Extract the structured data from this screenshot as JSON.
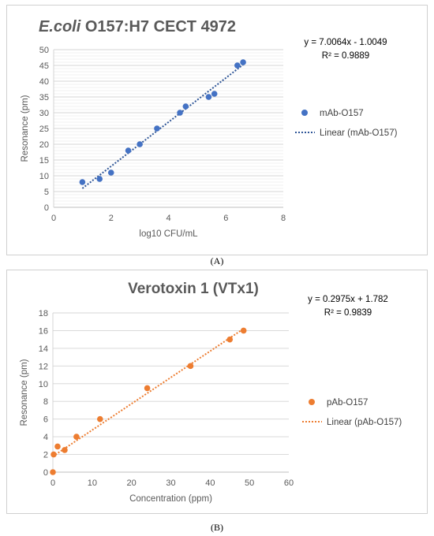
{
  "chart_data": [
    {
      "type": "scatter",
      "title_italic": "E.coli",
      "title_rest": " O157:H7 CECT 4972",
      "xlabel": "log10 CFU/mL",
      "ylabel": "Resonance (pm)",
      "xlim": [
        0,
        8
      ],
      "ylim": [
        0,
        50
      ],
      "xticks": [
        0,
        2,
        4,
        6,
        8
      ],
      "yticks": [
        0,
        5,
        10,
        15,
        20,
        25,
        30,
        35,
        40,
        45,
        50
      ],
      "minor_grid_step": 1,
      "grid": true,
      "legend_position": "right",
      "series": [
        {
          "name": "mAb-O157",
          "color": "#4472c4",
          "x": [
            1.0,
            1.6,
            2.0,
            2.6,
            3.0,
            3.6,
            4.4,
            4.6,
            5.4,
            5.6,
            6.4,
            6.6
          ],
          "y": [
            8,
            9,
            11,
            18,
            20,
            25,
            30,
            32,
            35,
            36,
            45,
            46
          ]
        }
      ],
      "trendline": {
        "name": "Linear (mAb-O157)",
        "color": "#2e5597",
        "slope": 7.0064,
        "intercept": -1.0049,
        "x_range": [
          1.0,
          6.6
        ]
      },
      "equation": "y = 7.0064x - 1.0049",
      "r_squared": "R² = 0.9889"
    },
    {
      "type": "scatter",
      "title_italic": "",
      "title_rest": "Verotoxin 1 (VTx1)",
      "xlabel": "Concentration (ppm)",
      "ylabel": "Resonance (pm)",
      "xlim": [
        0,
        60
      ],
      "ylim": [
        0,
        18
      ],
      "xticks": [
        0,
        10,
        20,
        30,
        40,
        50,
        60
      ],
      "yticks": [
        0,
        2,
        4,
        6,
        8,
        10,
        12,
        14,
        16,
        18
      ],
      "minor_grid_step": 0,
      "grid": true,
      "legend_position": "right",
      "series": [
        {
          "name": "pAb-O157",
          "color": "#ed7d31",
          "x": [
            0,
            0.2,
            1.2,
            3.0,
            6.0,
            12.0,
            24.0,
            35.0,
            45.0,
            48.5
          ],
          "y": [
            0,
            2.0,
            2.9,
            2.5,
            4.0,
            6.0,
            9.5,
            12.0,
            15.0,
            16.0
          ]
        }
      ],
      "trendline": {
        "name": "Linear (pAb-O157)",
        "color": "#ed7d31",
        "slope": 0.2975,
        "intercept": 1.782,
        "x_range": [
          0,
          48.5
        ]
      },
      "equation": "y = 0.2975x + 1.782",
      "r_squared": "R² = 0.9839"
    }
  ],
  "panel_labels": [
    "(A)",
    "(B)"
  ]
}
